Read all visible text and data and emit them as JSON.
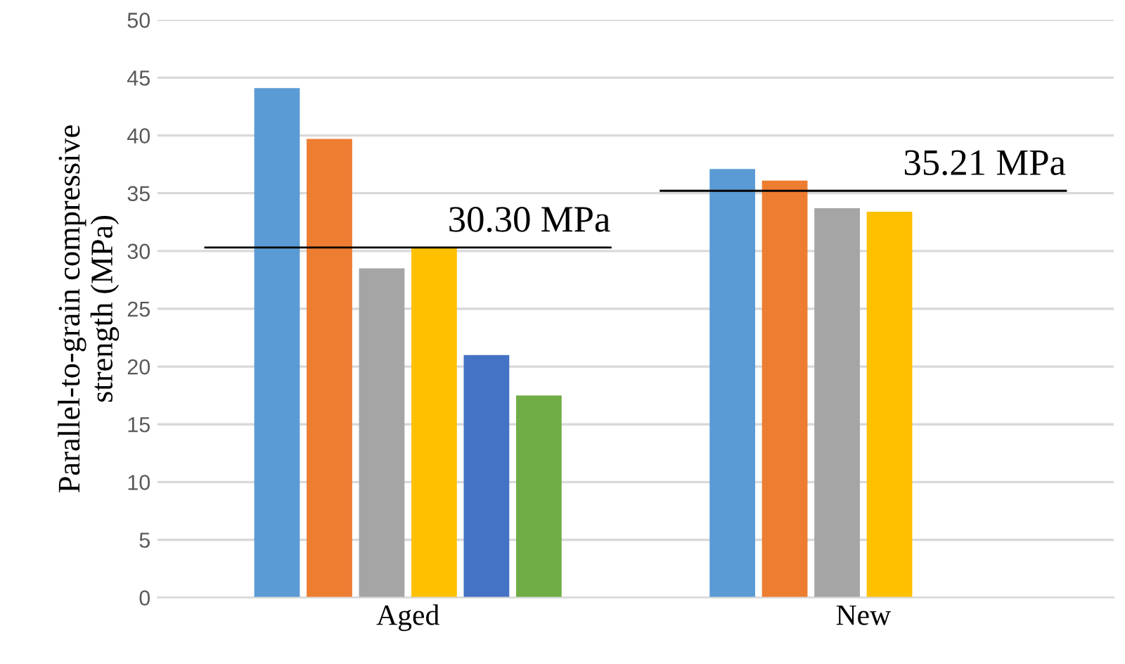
{
  "chart_data": {
    "type": "bar",
    "ylabel": "Parallel-to-grain compressive\nstrength (MPa)",
    "categories": [
      "Aged",
      "New"
    ],
    "series": [
      {
        "color": "#5b9bd5",
        "values": [
          44.1,
          37.1
        ]
      },
      {
        "color": "#ed7d31",
        "values": [
          39.7,
          36.1
        ]
      },
      {
        "color": "#a5a5a5",
        "values": [
          28.5,
          33.7
        ]
      },
      {
        "color": "#ffc000",
        "values": [
          30.3,
          33.4
        ]
      },
      {
        "color": "#4472c4",
        "values": [
          21.0,
          null
        ]
      },
      {
        "color": "#70ad47",
        "values": [
          17.5,
          null
        ]
      }
    ],
    "ylim": [
      0,
      50
    ],
    "yticks": [
      0,
      5,
      10,
      15,
      20,
      25,
      30,
      35,
      40,
      45,
      50
    ],
    "grid": "y",
    "legend": false,
    "ref_lines": [
      {
        "axis": "y",
        "value": 30.3,
        "label": "30.30 MPa",
        "color": "#000000"
      },
      {
        "axis": "y",
        "value": 35.21,
        "label": "35.21 MPa",
        "color": "#000000"
      }
    ]
  }
}
